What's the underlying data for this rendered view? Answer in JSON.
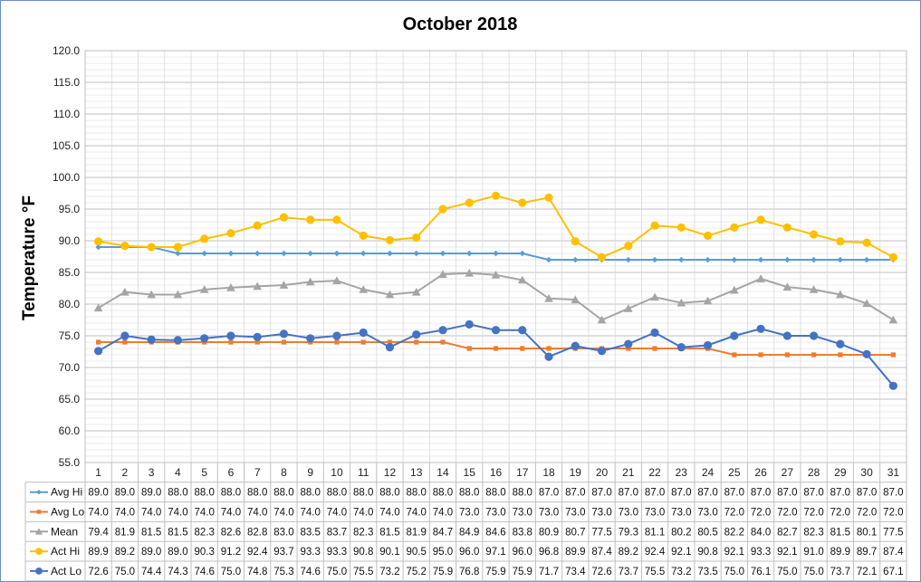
{
  "chart_data": {
    "type": "line",
    "title": "October 2018",
    "xlabel": "",
    "ylabel": "Temperature °F",
    "ylim": [
      55,
      120
    ],
    "ytick_step": 5,
    "grid": true,
    "legend": "data-table-left",
    "categories": [
      "1",
      "2",
      "3",
      "4",
      "5",
      "6",
      "7",
      "8",
      "9",
      "10",
      "11",
      "12",
      "13",
      "14",
      "15",
      "16",
      "17",
      "18",
      "19",
      "20",
      "21",
      "22",
      "23",
      "24",
      "25",
      "26",
      "27",
      "28",
      "29",
      "30",
      "31"
    ],
    "series": [
      {
        "name": "Avg Hi",
        "color": "#5b9bd5",
        "marker": "diamond",
        "values": [
          89.0,
          89.0,
          89.0,
          88.0,
          88.0,
          88.0,
          88.0,
          88.0,
          88.0,
          88.0,
          88.0,
          88.0,
          88.0,
          88.0,
          88.0,
          88.0,
          88.0,
          87.0,
          87.0,
          87.0,
          87.0,
          87.0,
          87.0,
          87.0,
          87.0,
          87.0,
          87.0,
          87.0,
          87.0,
          87.0,
          87.0
        ]
      },
      {
        "name": "Avg Lo",
        "color": "#ed7d31",
        "marker": "square",
        "values": [
          74.0,
          74.0,
          74.0,
          74.0,
          74.0,
          74.0,
          74.0,
          74.0,
          74.0,
          74.0,
          74.0,
          74.0,
          74.0,
          74.0,
          73.0,
          73.0,
          73.0,
          73.0,
          73.0,
          73.0,
          73.0,
          73.0,
          73.0,
          73.0,
          72.0,
          72.0,
          72.0,
          72.0,
          72.0,
          72.0,
          72.0
        ]
      },
      {
        "name": "Mean",
        "color": "#a5a5a5",
        "marker": "triangle",
        "values": [
          79.4,
          81.9,
          81.5,
          81.5,
          82.3,
          82.6,
          82.8,
          83.0,
          83.5,
          83.7,
          82.3,
          81.5,
          81.9,
          84.7,
          84.9,
          84.6,
          83.8,
          80.9,
          80.7,
          77.5,
          79.3,
          81.1,
          80.2,
          80.5,
          82.2,
          84.0,
          82.7,
          82.3,
          81.5,
          80.1,
          77.5
        ]
      },
      {
        "name": "Act Hi",
        "color": "#ffc000",
        "marker": "circle",
        "values": [
          89.9,
          89.2,
          89.0,
          89.0,
          90.3,
          91.2,
          92.4,
          93.7,
          93.3,
          93.3,
          90.8,
          90.1,
          90.5,
          95.0,
          96.0,
          97.1,
          96.0,
          96.8,
          89.9,
          87.4,
          89.2,
          92.4,
          92.1,
          90.8,
          92.1,
          93.3,
          92.1,
          91.0,
          89.9,
          89.7,
          87.4
        ]
      },
      {
        "name": "Act Lo",
        "color": "#4472c4",
        "marker": "circle",
        "values": [
          72.6,
          75.0,
          74.4,
          74.3,
          74.6,
          75.0,
          74.8,
          75.3,
          74.6,
          75.0,
          75.5,
          73.2,
          75.2,
          75.9,
          76.8,
          75.9,
          75.9,
          71.7,
          73.4,
          72.6,
          73.7,
          75.5,
          73.2,
          73.5,
          75.0,
          76.1,
          75.0,
          75.0,
          73.7,
          72.1,
          67.1
        ]
      }
    ]
  }
}
